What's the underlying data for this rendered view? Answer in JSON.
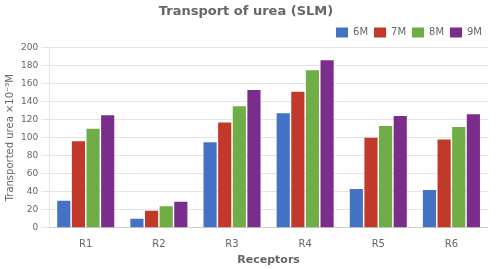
{
  "chart_data": {
    "type": "bar",
    "title": "Transport of urea (SLM)",
    "xlabel": "Receptors",
    "ylabel": "Transported urea ×10⁻³M",
    "categories": [
      "R1",
      "R2",
      "R3",
      "R4",
      "R5",
      "R6"
    ],
    "series": [
      {
        "name": "6M",
        "color": "#4472C4",
        "values": [
          30,
          10,
          95,
          127,
          43,
          42
        ]
      },
      {
        "name": "7M",
        "color": "#C0392B",
        "values": [
          96,
          19,
          117,
          151,
          100,
          98
        ]
      },
      {
        "name": "8M",
        "color": "#70AD47",
        "values": [
          110,
          24,
          135,
          175,
          113,
          112
        ]
      },
      {
        "name": "9M",
        "color": "#7B2D8B",
        "values": [
          125,
          29,
          153,
          186,
          124,
          126
        ]
      }
    ],
    "ylim": [
      0,
      200
    ],
    "yticks": [
      0,
      20,
      40,
      60,
      80,
      100,
      120,
      140,
      160,
      180,
      200
    ],
    "grid": true,
    "legend": "upper right"
  }
}
